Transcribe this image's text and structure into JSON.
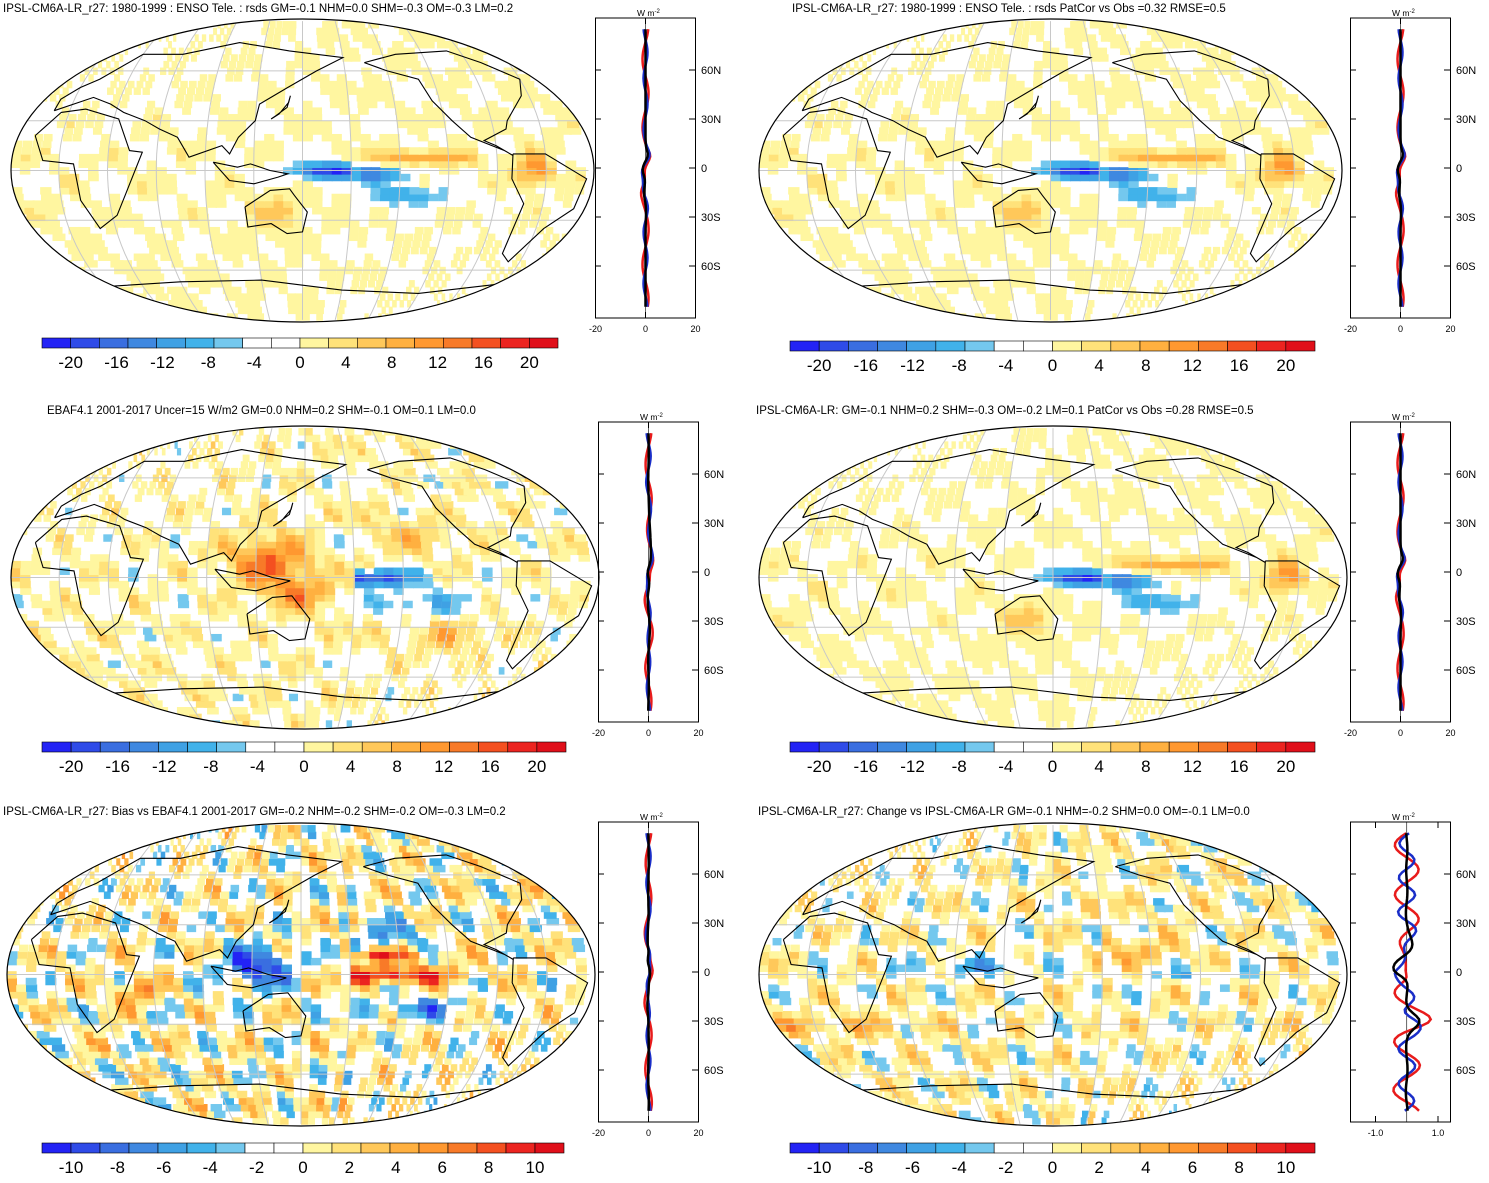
{
  "panels": [
    {
      "id": "p1",
      "title": "IPSL-CM6A-LR_r27: 1980-1999 : ENSO Tele. : rsds GM=-0.1 NHM=0.0 SHM=-0.3 OM=-0.3 LM=0.2",
      "pattern": "enso-model",
      "zonal": {
        "unit_label": "W m",
        "unit_sup": "-2",
        "lat_labels": [
          "60N",
          "30N",
          "0",
          "30S",
          "60S"
        ],
        "x_ticks": [
          "-20",
          "0",
          "20"
        ],
        "x_range": [
          -20,
          20
        ]
      },
      "colorbar": {
        "labels": [
          "-20",
          "-16",
          "-12",
          "-8",
          "-4",
          "0",
          "4",
          "8",
          "12",
          "16",
          "20"
        ],
        "range": [
          -22,
          22
        ]
      }
    },
    {
      "id": "p2",
      "title": "IPSL-CM6A-LR_r27: 1980-1999 : ENSO Tele. : rsds PatCor vs Obs =0.32 RMSE=0.5",
      "pattern": "enso-model",
      "zonal": {
        "unit_label": "W m",
        "unit_sup": "-2",
        "lat_labels": [
          "60N",
          "30N",
          "0",
          "30S",
          "60S"
        ],
        "x_ticks": [
          "-20",
          "0",
          "20"
        ],
        "x_range": [
          -20,
          20
        ]
      },
      "colorbar": {
        "labels": [
          "-20",
          "-16",
          "-12",
          "-8",
          "-4",
          "0",
          "4",
          "8",
          "12",
          "16",
          "20"
        ],
        "range": [
          -22,
          22
        ]
      }
    },
    {
      "id": "p3",
      "title": "EBAF4.1 2001-2017 Uncer=15 W/m2 GM=0.0 NHM=0.2 SHM=-0.1 OM=0.1 LM=0.0",
      "pattern": "enso-obs",
      "zonal": {
        "unit_label": "W m",
        "unit_sup": "-2",
        "lat_labels": [
          "60N",
          "30N",
          "0",
          "30S",
          "60S"
        ],
        "x_ticks": [
          "-20",
          "0",
          "20"
        ],
        "x_range": [
          -20,
          20
        ]
      },
      "colorbar": {
        "labels": [
          "-20",
          "-16",
          "-12",
          "-8",
          "-4",
          "0",
          "4",
          "8",
          "12",
          "16",
          "20"
        ],
        "range": [
          -22,
          22
        ]
      }
    },
    {
      "id": "p4",
      "title": "IPSL-CM6A-LR: GM=-0.1 NHM=0.2 SHM=-0.3 OM=-0.2 LM=0.1 PatCor vs Obs =0.28 RMSE=0.5",
      "pattern": "enso-model",
      "zonal": {
        "unit_label": "W m",
        "unit_sup": "-2",
        "lat_labels": [
          "60N",
          "30N",
          "0",
          "30S",
          "60S"
        ],
        "x_ticks": [
          "-20",
          "0",
          "20"
        ],
        "x_range": [
          -20,
          20
        ]
      },
      "colorbar": {
        "labels": [
          "-20",
          "-16",
          "-12",
          "-8",
          "-4",
          "0",
          "4",
          "8",
          "12",
          "16",
          "20"
        ],
        "range": [
          -22,
          22
        ]
      }
    },
    {
      "id": "p5",
      "title": "IPSL-CM6A-LR_r27: Bias vs EBAF4.1 2001-2017 GM=-0.2 NHM=-0.2 SHM=-0.2 OM=-0.3 LM=0.2",
      "pattern": "bias",
      "zonal": {
        "unit_label": "W m",
        "unit_sup": "-2",
        "lat_labels": [
          "60N",
          "30N",
          "0",
          "30S",
          "60S"
        ],
        "x_ticks": [
          "-20",
          "0",
          "20"
        ],
        "x_range": [
          -20,
          20
        ]
      },
      "colorbar": {
        "labels": [
          "-10",
          "-8",
          "-6",
          "-4",
          "-2",
          "0",
          "2",
          "4",
          "6",
          "8",
          "10"
        ],
        "range": [
          -11,
          11
        ]
      }
    },
    {
      "id": "p6",
      "title": "IPSL-CM6A-LR_r27: Change vs IPSL-CM6A-LR GM=-0.1 NHM=-0.2 SHM=0.0 OM=-0.1 LM=0.0",
      "pattern": "change",
      "zonal": {
        "unit_label": "W m",
        "unit_sup": "-2",
        "lat_labels": [
          "60N",
          "30N",
          "0",
          "30S",
          "60S"
        ],
        "x_ticks": [
          "-1.0",
          "1.0"
        ],
        "x_range": [
          -1.8,
          1.4
        ]
      },
      "colorbar": {
        "labels": [
          "-10",
          "-8",
          "-6",
          "-4",
          "-2",
          "0",
          "2",
          "4",
          "6",
          "8",
          "10"
        ],
        "range": [
          -11,
          11
        ]
      }
    }
  ],
  "colors": {
    "palette": [
      "#2323f5",
      "#2f4be8",
      "#3a6ee0",
      "#3f88e0",
      "#3fa1e4",
      "#41b2ea",
      "#74c8ee",
      "#ffffff",
      "#ffffff",
      "#fff6a0",
      "#ffe27a",
      "#ffc85a",
      "#ffb040",
      "#ff9830",
      "#f87a28",
      "#f45020",
      "#ec2420",
      "#e00f1a"
    ],
    "land_outline": "#000000",
    "grid": "#c8c8c8",
    "zonal_model": "#e81b1b",
    "zonal_obs": "#1a2ec8",
    "zonal_diff": "#000000"
  }
}
